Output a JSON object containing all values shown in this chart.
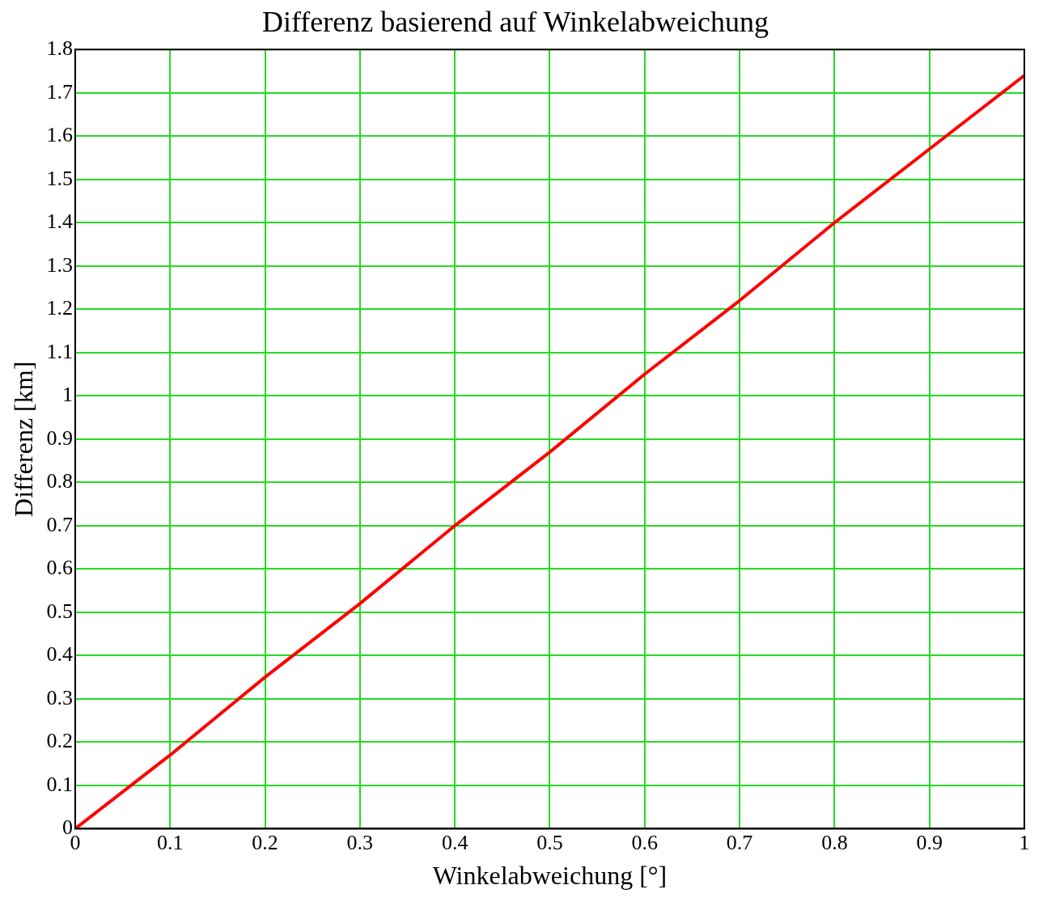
{
  "chart_data": {
    "type": "line",
    "title": "Differenz basierend auf Winkelabweichung",
    "xlabel": "Winkelabweichung [°]",
    "ylabel": "Differenz [km]",
    "x": [
      0,
      0.1,
      0.2,
      0.3,
      0.4,
      0.5,
      0.6,
      0.7,
      0.8,
      0.9,
      1
    ],
    "series": [
      {
        "color": "#ff0000",
        "values": [
          0,
          0.17,
          0.35,
          0.52,
          0.7,
          0.87,
          1.05,
          1.22,
          1.4,
          1.57,
          1.74
        ]
      }
    ],
    "xlim": [
      0,
      1
    ],
    "xticks": [
      0,
      0.1,
      0.2,
      0.3,
      0.4,
      0.5,
      0.6,
      0.7,
      0.8,
      0.9,
      1
    ],
    "ylim": [
      0,
      1.8
    ],
    "yticks": [
      0,
      0.1,
      0.2,
      0.3,
      0.4,
      0.5,
      0.6,
      0.7,
      0.8,
      0.9,
      1,
      1.1,
      1.2,
      1.3,
      1.4,
      1.5,
      1.6,
      1.7,
      1.8
    ],
    "grid": true,
    "legend": false,
    "marker": "none",
    "line_style": "solid"
  }
}
